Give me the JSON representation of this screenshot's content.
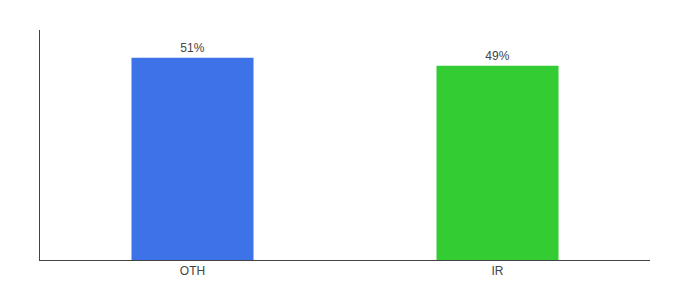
{
  "chart_data": {
    "type": "bar",
    "categories": [
      "OTH",
      "IR"
    ],
    "values": [
      51,
      49
    ],
    "colors": [
      "#3d72e8",
      "#33cc33"
    ],
    "data_labels": true,
    "value_labels": [
      "51%",
      "49%"
    ],
    "ylim": [
      0,
      58
    ],
    "yticks": [],
    "grid": false,
    "tick_labels": "x"
  }
}
